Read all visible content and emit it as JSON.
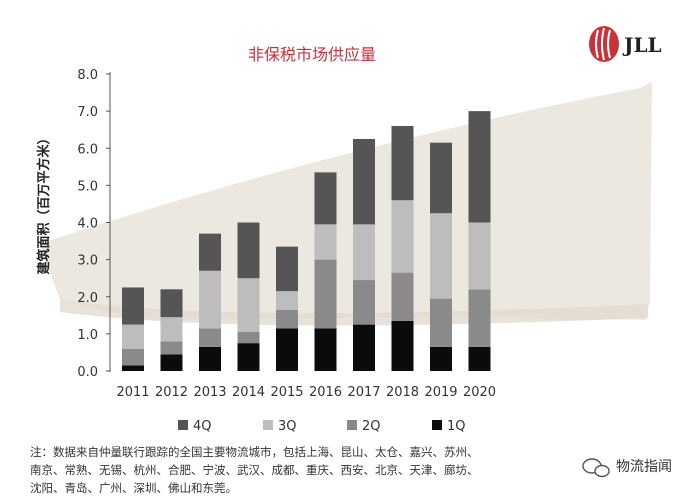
{
  "logo": {
    "text": "JLL",
    "color": "#c8323a"
  },
  "watermark": {
    "text": "物流指闻"
  },
  "chart_data": {
    "type": "bar",
    "stacked": true,
    "title": "非保税市场供应量",
    "ylabel": "建筑面积（百万平方米）",
    "xlabel": "",
    "ylim": [
      0,
      8
    ],
    "yticks": [
      "0.0",
      "1.0",
      "2.0",
      "3.0",
      "4.0",
      "5.0",
      "6.0",
      "7.0",
      "8.0"
    ],
    "categories": [
      "2011",
      "2012",
      "2013",
      "2014",
      "2015",
      "2016",
      "2017",
      "2018",
      "2019",
      "2020"
    ],
    "series": [
      {
        "name": "1Q",
        "color": "#0b0b0b",
        "values": [
          0.15,
          0.45,
          0.65,
          0.75,
          1.15,
          1.15,
          1.25,
          1.35,
          0.65,
          0.65
        ]
      },
      {
        "name": "2Q",
        "color": "#8a8a8a",
        "values": [
          0.45,
          0.35,
          0.5,
          0.3,
          0.5,
          1.85,
          1.2,
          1.3,
          1.3,
          1.55
        ]
      },
      {
        "name": "3Q",
        "color": "#bdbdbd",
        "values": [
          0.65,
          0.65,
          1.55,
          1.45,
          0.5,
          0.95,
          1.5,
          1.95,
          2.3,
          1.8
        ]
      },
      {
        "name": "4Q",
        "color": "#555555",
        "values": [
          1.0,
          0.75,
          1.0,
          1.5,
          1.2,
          1.4,
          2.3,
          2.0,
          1.9,
          3.0
        ]
      }
    ],
    "legend_order": [
      "4Q",
      "3Q",
      "2Q",
      "1Q"
    ],
    "legend_position": "bottom",
    "grid": false
  },
  "note": {
    "lines": [
      "注：数据来自仲量联行跟踪的全国主要物流城市，包括上海、昆山、太仓、嘉兴、苏州、",
      "南京、常熟、无锡、杭州、合肥、宁波、武汉、成都、重庆、西安、北京、天津、廊坊、",
      "沈阳、青岛、广州、深圳、佛山和东莞。"
    ]
  }
}
